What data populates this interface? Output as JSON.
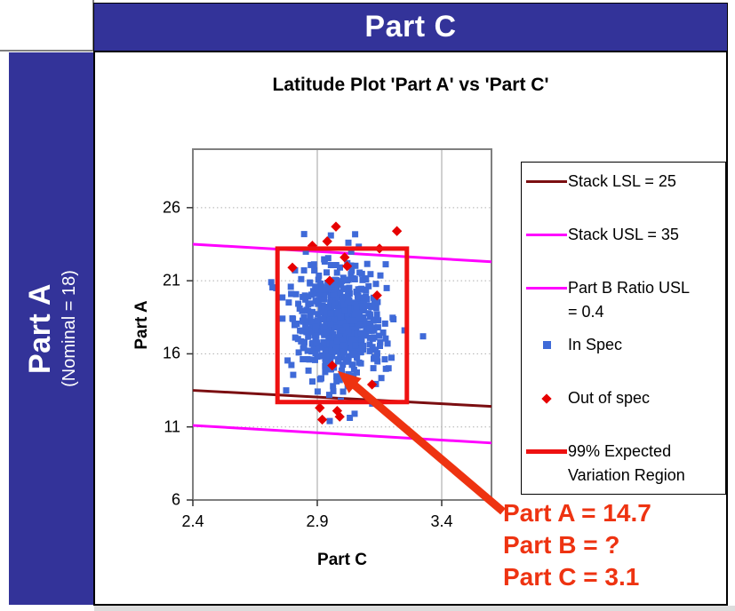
{
  "banner": {
    "top_title": "Part C",
    "left_title": "Part A",
    "left_subtitle": "(Nominal = 18)"
  },
  "colors": {
    "banner_blue": "#333399",
    "plot_border": "#7f7f7f",
    "gridline": "#b0b0b0",
    "tick": "#333333",
    "in_spec_blue": "#3f6ad8",
    "out_of_spec_red": "#e60000",
    "region_red": "#ee1111",
    "stack_lsl_maroon": "#7b0e11",
    "magenta": "#ff00ff",
    "callout_red": "#ee3311"
  },
  "chart_data": {
    "type": "scatter",
    "title": "Latitude Plot 'Part A' vs 'Part C'",
    "xlabel": "Part C",
    "ylabel": "Part A",
    "xlim": [
      2.4,
      3.6
    ],
    "ylim": [
      6,
      30
    ],
    "xticks": [
      2.4,
      2.9,
      3.4
    ],
    "xtick_labels": [
      "2.4",
      "2.9",
      "3.4"
    ],
    "yticks": [
      6,
      11,
      16,
      21,
      26
    ],
    "ytick_labels": [
      "6",
      "11",
      "16",
      "21",
      "26"
    ],
    "grid": {
      "horizontal": "dotted",
      "vertical": "solid"
    },
    "legend_position": "right",
    "series": [
      {
        "name": "Stack LSL = 25",
        "type": "line",
        "color": "#7b0e11",
        "points": [
          [
            2.4,
            13.5
          ],
          [
            3.6,
            12.4
          ]
        ]
      },
      {
        "name": "Stack USL = 35",
        "type": "line",
        "color": "#ff00ff",
        "points": [
          [
            2.4,
            23.5
          ],
          [
            3.6,
            22.3
          ]
        ]
      },
      {
        "name": "Part B Ratio USL = 0.4",
        "type": "line",
        "color": "#ff00ff",
        "points": [
          [
            2.4,
            11.1
          ],
          [
            3.6,
            9.9
          ]
        ]
      },
      {
        "name": "In Spec",
        "type": "scatter",
        "marker": "square",
        "color": "#3f6ad8",
        "cluster": {
          "center": [
            2.99,
            18.1
          ],
          "sd": [
            0.085,
            1.9
          ],
          "n": 600,
          "seed": 20
        },
        "extra_points": [
          [
            2.715,
            20.9
          ],
          [
            2.735,
            20.5
          ],
          [
            2.775,
            13.5
          ],
          [
            3.325,
            17.2
          ],
          [
            3.025,
            23.6
          ],
          [
            2.95,
            11.4
          ],
          [
            3.05,
            11.9
          ]
        ]
      },
      {
        "name": "Out of spec",
        "type": "scatter",
        "marker": "diamond",
        "color": "#e60000",
        "points": [
          [
            2.975,
            24.7
          ],
          [
            3.22,
            24.4
          ],
          [
            2.94,
            23.7
          ],
          [
            2.88,
            23.4
          ],
          [
            3.15,
            23.2
          ],
          [
            3.01,
            22.6
          ],
          [
            2.8,
            21.9
          ],
          [
            3.02,
            22.0
          ],
          [
            2.95,
            21.0
          ],
          [
            3.14,
            20.0
          ],
          [
            2.96,
            15.2
          ],
          [
            3.12,
            13.9
          ],
          [
            2.91,
            12.3
          ],
          [
            2.98,
            12.1
          ],
          [
            2.92,
            11.5
          ],
          [
            2.99,
            11.7
          ]
        ]
      },
      {
        "name": "99% Expected Variation Region",
        "type": "region",
        "color": "#ee1111",
        "x": [
          2.74,
          3.26
        ],
        "y": [
          12.7,
          23.2
        ]
      }
    ],
    "legend": {
      "entries": [
        {
          "marker": "line",
          "color": "#7b0e11",
          "lines": [
            "Stack LSL = 25"
          ]
        },
        {
          "marker": "line",
          "color": "#ff00ff",
          "lines": [
            "Stack USL = 35"
          ]
        },
        {
          "marker": "line",
          "color": "#ff00ff",
          "lines": [
            "Part B Ratio USL",
            "= 0.4"
          ]
        },
        {
          "marker": "square",
          "color": "#3f6ad8",
          "lines": [
            "In Spec"
          ]
        },
        {
          "marker": "diamond",
          "color": "#e60000",
          "lines": [
            "Out of spec"
          ]
        },
        {
          "marker": "thick-line",
          "color": "#ee1111",
          "lines": [
            "99% Expected",
            "Variation Region"
          ]
        }
      ]
    },
    "annotation": {
      "lines": [
        "Part A = 14.7",
        "Part B = ?",
        "Part C = 3.1"
      ],
      "color": "#ee3311",
      "arrow_points_to": [
        2.96,
        15.2
      ]
    }
  }
}
